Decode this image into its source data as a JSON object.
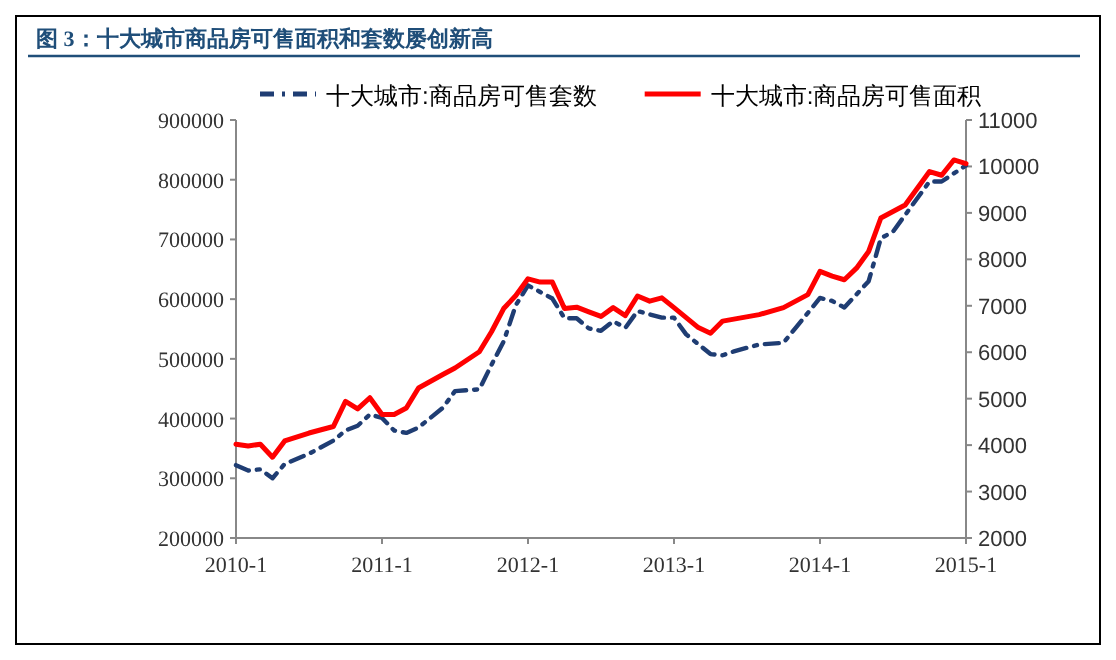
{
  "chart_data": {
    "type": "line",
    "title": "图 3：十大城市商品房可售面积和套数屡创新高",
    "xlim": [
      "2010-01",
      "2015-01"
    ],
    "xticks": [
      {
        "value": "2010-01",
        "label": "2010-1"
      },
      {
        "value": "2011-01",
        "label": "2011-1"
      },
      {
        "value": "2012-01",
        "label": "2012-1"
      },
      {
        "value": "2013-01",
        "label": "2013-1"
      },
      {
        "value": "2014-01",
        "label": "2014-1"
      },
      {
        "value": "2015-01",
        "label": "2015-1"
      }
    ],
    "ylim": [
      200000,
      900000
    ],
    "yticks": [
      200000,
      300000,
      400000,
      500000,
      600000,
      700000,
      800000,
      900000
    ],
    "y2lim": [
      2000,
      11000
    ],
    "y2ticks": [
      2000,
      3000,
      4000,
      5000,
      6000,
      7000,
      8000,
      9000,
      10000,
      11000
    ],
    "legend": "top",
    "grid": false,
    "series": [
      {
        "name": "十大城市:商品房可售套数",
        "color": "#1f3d73",
        "line_style": "dashed",
        "x": [
          "2010-01",
          "2010-02",
          "2010-03",
          "2010-04",
          "2010-05",
          "2010-07",
          "2010-09",
          "2010-10",
          "2010-11",
          "2010-12",
          "2011-01",
          "2011-02",
          "2011-03",
          "2011-04",
          "2011-06",
          "2011-07",
          "2011-09",
          "2011-10",
          "2011-11",
          "2011-12",
          "2012-01",
          "2012-02",
          "2012-03",
          "2012-04",
          "2012-05",
          "2012-06",
          "2012-07",
          "2012-08",
          "2012-09",
          "2012-10",
          "2012-12",
          "2013-01",
          "2013-02",
          "2013-04",
          "2013-05",
          "2013-06",
          "2013-08",
          "2013-10",
          "2013-11",
          "2014-01",
          "2014-02",
          "2014-03",
          "2014-05",
          "2014-06",
          "2014-07",
          "2014-08",
          "2014-10",
          "2014-11",
          "2015-01"
        ],
        "values": [
          322000,
          313000,
          315000,
          300000,
          324000,
          341000,
          363000,
          380000,
          388000,
          407000,
          401000,
          380000,
          376000,
          385000,
          418000,
          446000,
          449000,
          490000,
          529000,
          590000,
          623000,
          612000,
          601000,
          568000,
          568000,
          551000,
          547000,
          563000,
          552000,
          580000,
          569000,
          569000,
          541000,
          508000,
          506000,
          513000,
          524000,
          527000,
          552000,
          602000,
          597000,
          586000,
          630000,
          702000,
          713000,
          741000,
          797000,
          797000,
          824000
        ]
      },
      {
        "name": "十大城市:商品房可售面积",
        "color": "#ff0000",
        "line_style": "solid",
        "axis": "y2",
        "x": [
          "2010-01",
          "2010-02",
          "2010-03",
          "2010-04",
          "2010-05",
          "2010-07",
          "2010-09",
          "2010-10",
          "2010-11",
          "2010-12",
          "2011-01",
          "2011-02",
          "2011-03",
          "2011-04",
          "2011-06",
          "2011-07",
          "2011-09",
          "2011-10",
          "2011-11",
          "2011-12",
          "2012-01",
          "2012-02",
          "2012-03",
          "2012-04",
          "2012-05",
          "2012-06",
          "2012-07",
          "2012-08",
          "2012-09",
          "2012-10",
          "2012-11",
          "2012-12",
          "2013-01",
          "2013-03",
          "2013-04",
          "2013-05",
          "2013-08",
          "2013-10",
          "2013-12",
          "2014-01",
          "2014-02",
          "2014-03",
          "2014-04",
          "2014-05",
          "2014-06",
          "2014-08",
          "2014-10",
          "2014-11",
          "2014-12",
          "2015-01"
        ],
        "values": [
          4020,
          3980,
          4020,
          3740,
          4090,
          4260,
          4400,
          4940,
          4780,
          5020,
          4660,
          4660,
          4800,
          5230,
          5520,
          5660,
          6010,
          6440,
          6940,
          7220,
          7580,
          7510,
          7510,
          6940,
          6970,
          6870,
          6770,
          6960,
          6790,
          7210,
          7100,
          7170,
          6960,
          6530,
          6410,
          6670,
          6810,
          6960,
          7240,
          7740,
          7640,
          7560,
          7810,
          8170,
          8890,
          9170,
          9890,
          9810,
          10140,
          10060
        ]
      }
    ]
  }
}
